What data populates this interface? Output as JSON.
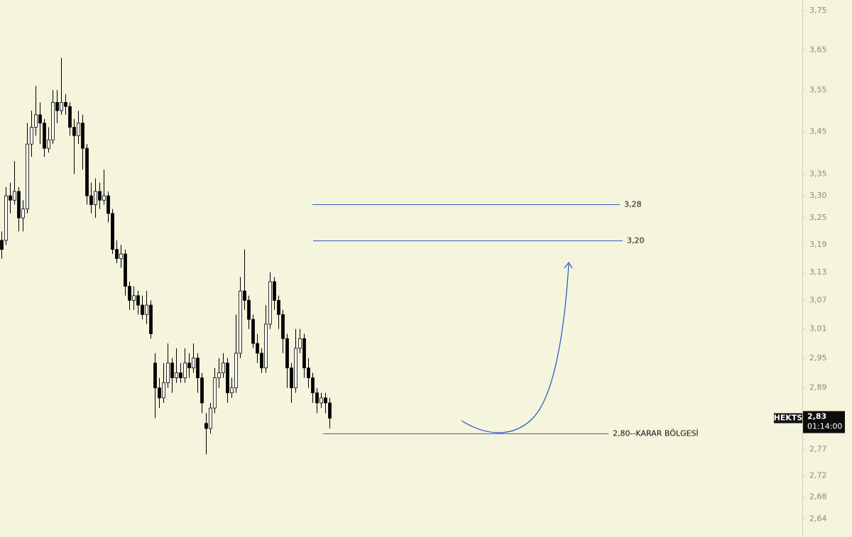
{
  "chart_data": {
    "type": "candlestick",
    "log": true,
    "up_fill": "#ffffff",
    "down_fill": "#000000",
    "wick_color": "#000000",
    "ylim": [
      2.607,
      3.778
    ],
    "yticks": [
      {
        "value": 3.75,
        "label": "3,75"
      },
      {
        "value": 3.65,
        "label": "3,65"
      },
      {
        "value": 3.55,
        "label": "3,55"
      },
      {
        "value": 3.45,
        "label": "3,45"
      },
      {
        "value": 3.35,
        "label": "3,35"
      },
      {
        "value": 3.3,
        "label": "3,30"
      },
      {
        "value": 3.25,
        "label": "3,25"
      },
      {
        "value": 3.19,
        "label": "3,19"
      },
      {
        "value": 3.13,
        "label": "3,13"
      },
      {
        "value": 3.07,
        "label": "3,07"
      },
      {
        "value": 3.01,
        "label": "3,01"
      },
      {
        "value": 2.95,
        "label": "2,95"
      },
      {
        "value": 2.89,
        "label": "2,89"
      },
      {
        "value": 2.77,
        "label": "2,77"
      },
      {
        "value": 2.72,
        "label": "2,72"
      },
      {
        "value": 2.68,
        "label": "2,68"
      },
      {
        "value": 2.64,
        "label": "2,64"
      }
    ],
    "levels": [
      {
        "value": 3.28,
        "label": "3,28"
      },
      {
        "value": 3.2,
        "label": "3,20"
      },
      {
        "value": 2.8,
        "label": "2,80--KARAR BÖLGESİ"
      }
    ],
    "level_color": "#2f5fc4",
    "symbol": "HEKTS",
    "last_price": {
      "value": 2.83,
      "label": "2,83"
    },
    "countdown": "01:14:00",
    "ohlc": [
      [
        3.2,
        3.22,
        3.16,
        3.18
      ],
      [
        3.2,
        3.32,
        3.19,
        3.3
      ],
      [
        3.3,
        3.33,
        3.26,
        3.29
      ],
      [
        3.29,
        3.38,
        3.28,
        3.31
      ],
      [
        3.31,
        3.32,
        3.22,
        3.25
      ],
      [
        3.25,
        3.29,
        3.22,
        3.27
      ],
      [
        3.27,
        3.47,
        3.26,
        3.42
      ],
      [
        3.42,
        3.5,
        3.39,
        3.46
      ],
      [
        3.46,
        3.56,
        3.44,
        3.49
      ],
      [
        3.49,
        3.52,
        3.42,
        3.47
      ],
      [
        3.47,
        3.48,
        3.39,
        3.41
      ],
      [
        3.41,
        3.46,
        3.4,
        3.43
      ],
      [
        3.43,
        3.55,
        3.42,
        3.52
      ],
      [
        3.52,
        3.55,
        3.47,
        3.5
      ],
      [
        3.5,
        3.63,
        3.49,
        3.52
      ],
      [
        3.52,
        3.54,
        3.49,
        3.51
      ],
      [
        3.51,
        3.52,
        3.44,
        3.46
      ],
      [
        3.46,
        3.48,
        3.35,
        3.44
      ],
      [
        3.44,
        3.5,
        3.42,
        3.47
      ],
      [
        3.47,
        3.49,
        3.36,
        3.41
      ],
      [
        3.41,
        3.42,
        3.28,
        3.3
      ],
      [
        3.3,
        3.33,
        3.26,
        3.28
      ],
      [
        3.28,
        3.34,
        3.25,
        3.31
      ],
      [
        3.31,
        3.33,
        3.27,
        3.29
      ],
      [
        3.29,
        3.36,
        3.28,
        3.3
      ],
      [
        3.3,
        3.31,
        3.24,
        3.26
      ],
      [
        3.26,
        3.27,
        3.17,
        3.18
      ],
      [
        3.18,
        3.2,
        3.15,
        3.16
      ],
      [
        3.16,
        3.19,
        3.14,
        3.17
      ],
      [
        3.17,
        3.18,
        3.08,
        3.1
      ],
      [
        3.1,
        3.11,
        3.05,
        3.07
      ],
      [
        3.07,
        3.1,
        3.05,
        3.08
      ],
      [
        3.08,
        3.09,
        3.04,
        3.06
      ],
      [
        3.06,
        3.08,
        3.03,
        3.04
      ],
      [
        3.04,
        3.09,
        3.02,
        3.06
      ],
      [
        3.06,
        3.07,
        2.99,
        3.0
      ],
      [
        2.94,
        2.96,
        2.83,
        2.89
      ],
      [
        2.89,
        2.91,
        2.85,
        2.87
      ],
      [
        2.87,
        2.94,
        2.86,
        2.9
      ],
      [
        2.9,
        2.98,
        2.89,
        2.94
      ],
      [
        2.94,
        2.95,
        2.88,
        2.91
      ],
      [
        2.91,
        2.97,
        2.9,
        2.92
      ],
      [
        2.92,
        2.94,
        2.9,
        2.91
      ],
      [
        2.91,
        2.97,
        2.9,
        2.94
      ],
      [
        2.94,
        2.96,
        2.91,
        2.93
      ],
      [
        2.93,
        2.98,
        2.92,
        2.95
      ],
      [
        2.95,
        2.96,
        2.88,
        2.91
      ],
      [
        2.91,
        2.92,
        2.84,
        2.86
      ],
      [
        2.82,
        2.84,
        2.76,
        2.81
      ],
      [
        2.81,
        2.86,
        2.8,
        2.85
      ],
      [
        2.85,
        2.93,
        2.84,
        2.91
      ],
      [
        2.91,
        2.95,
        2.89,
        2.92
      ],
      [
        2.92,
        2.96,
        2.91,
        2.94
      ],
      [
        2.94,
        2.95,
        2.86,
        2.88
      ],
      [
        2.88,
        2.91,
        2.87,
        2.89
      ],
      [
        2.89,
        3.04,
        2.88,
        2.96
      ],
      [
        2.96,
        3.12,
        2.95,
        3.09
      ],
      [
        3.09,
        3.18,
        3.05,
        3.07
      ],
      [
        3.07,
        3.08,
        3.01,
        3.03
      ],
      [
        3.03,
        3.04,
        2.97,
        2.98
      ],
      [
        2.98,
        3.0,
        2.94,
        2.96
      ],
      [
        2.96,
        2.97,
        2.92,
        2.93
      ],
      [
        2.93,
        3.06,
        2.92,
        3.02
      ],
      [
        3.02,
        3.13,
        3.01,
        3.11
      ],
      [
        3.11,
        3.12,
        3.05,
        3.07
      ],
      [
        3.07,
        3.08,
        3.01,
        3.04
      ],
      [
        3.04,
        3.05,
        2.96,
        2.99
      ],
      [
        2.99,
        3.0,
        2.89,
        2.93
      ],
      [
        2.93,
        2.94,
        2.86,
        2.89
      ],
      [
        2.89,
        3.01,
        2.88,
        2.97
      ],
      [
        2.97,
        3.01,
        2.96,
        2.99
      ],
      [
        2.99,
        3.0,
        2.91,
        2.93
      ],
      [
        2.93,
        2.95,
        2.89,
        2.91
      ],
      [
        2.91,
        2.92,
        2.86,
        2.88
      ],
      [
        2.88,
        2.89,
        2.84,
        2.86
      ],
      [
        2.86,
        2.88,
        2.85,
        2.87
      ],
      [
        2.87,
        2.88,
        2.84,
        2.86
      ],
      [
        2.86,
        2.87,
        2.81,
        2.83
      ]
    ]
  }
}
